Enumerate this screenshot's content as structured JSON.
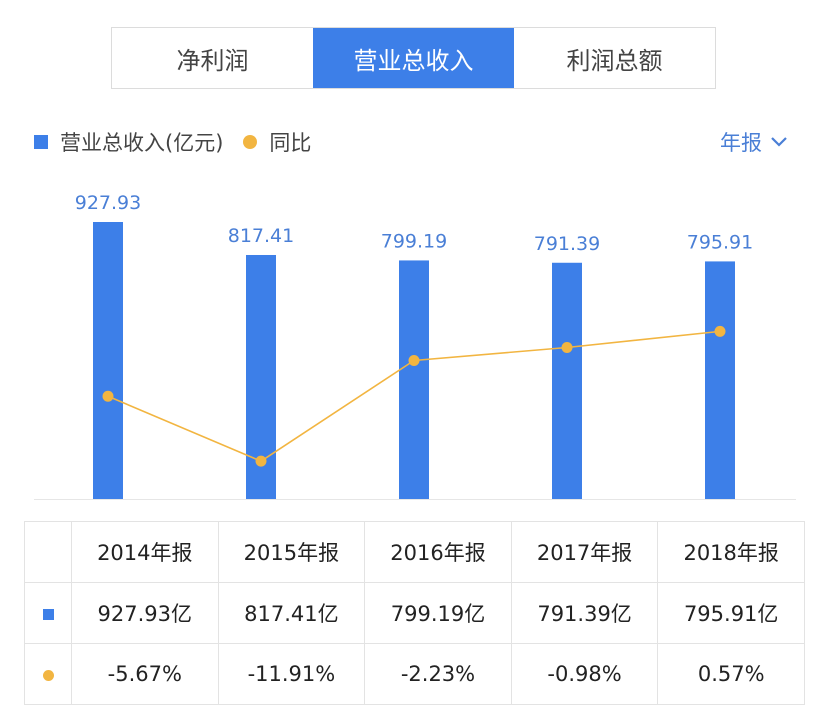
{
  "tabs": [
    {
      "label": "净利润",
      "active": false
    },
    {
      "label": "营业总收入",
      "active": true
    },
    {
      "label": "利润总额",
      "active": false
    }
  ],
  "legend": {
    "bar_label": "营业总收入(亿元)",
    "line_label": "同比"
  },
  "period_selector": {
    "label": "年报",
    "icon": "chevron-down-icon"
  },
  "colors": {
    "bar": "#3d7fe8",
    "line": "#f2b541",
    "negative": "#2ea44f",
    "positive": "#d9363e",
    "label": "#4a7fd6"
  },
  "chart_data": {
    "type": "bar",
    "categories": [
      "2014年报",
      "2015年报",
      "2016年报",
      "2017年报",
      "2018年报"
    ],
    "series": [
      {
        "name": "营业总收入(亿元)",
        "type": "bar",
        "values": [
          927.93,
          817.41,
          799.19,
          791.39,
          795.91
        ],
        "data_labels": [
          "927.93",
          "817.41",
          "799.19",
          "791.39",
          "795.91"
        ]
      },
      {
        "name": "同比",
        "type": "line",
        "values": [
          -5.67,
          -11.91,
          -2.23,
          -0.98,
          0.57
        ]
      }
    ],
    "grid": false
  },
  "table": {
    "header": [
      "2014年报",
      "2015年报",
      "2016年报",
      "2017年报",
      "2018年报"
    ],
    "revenue": [
      "927.93亿",
      "817.41亿",
      "799.19亿",
      "791.39亿",
      "795.91亿"
    ],
    "yoy": [
      "-5.67%",
      "-11.91%",
      "-2.23%",
      "-0.98%",
      "0.57%"
    ]
  }
}
